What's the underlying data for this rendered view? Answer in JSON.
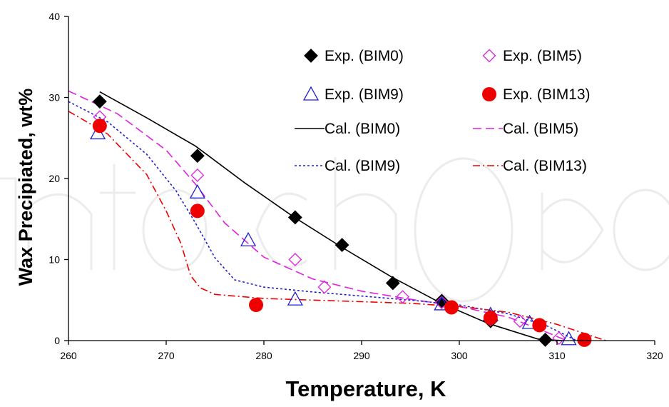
{
  "chart_data": {
    "type": "scatter",
    "title": "",
    "xlabel": "Temperature, K",
    "ylabel": "Wax Precipiated, wt%",
    "xlim": [
      260,
      320
    ],
    "ylim": [
      0,
      40
    ],
    "xticks": [
      260,
      270,
      280,
      290,
      300,
      310,
      320
    ],
    "yticks": [
      0,
      10,
      20,
      30,
      40
    ],
    "grid": false,
    "legend_position": "top-right",
    "series": [
      {
        "name": "Exp. (BIM0)",
        "kind": "marker",
        "marker": "diamond-filled",
        "color": "#000000",
        "x": [
          263.2,
          273.2,
          283.2,
          288.0,
          293.2,
          298.2,
          303.2,
          308.8
        ],
        "y": [
          29.5,
          22.8,
          15.2,
          11.8,
          7.1,
          4.9,
          2.4,
          0.1
        ]
      },
      {
        "name": "Exp. (BIM5)",
        "kind": "marker",
        "marker": "diamond-open",
        "color": "#E020E0",
        "x": [
          263.2,
          273.2,
          283.2,
          286.2,
          294.2,
          298.2,
          303.2,
          306.2,
          310.2
        ],
        "y": [
          27.6,
          20.4,
          10.0,
          6.6,
          5.4,
          4.7,
          2.6,
          2.4,
          0.3
        ]
      },
      {
        "name": "Exp. (BIM9)",
        "kind": "marker",
        "marker": "triangle-open",
        "color": "#2020D0",
        "x": [
          263.0,
          273.2,
          278.4,
          283.2,
          298.2,
          303.2,
          307.2,
          311.2
        ],
        "y": [
          25.6,
          18.3,
          12.4,
          5.1,
          4.5,
          3.2,
          2.2,
          0.2
        ]
      },
      {
        "name": "Exp. (BIM13)",
        "kind": "marker",
        "marker": "circle-filled",
        "color": "#EE0000",
        "x": [
          263.2,
          273.2,
          279.2,
          299.2,
          303.2,
          308.2,
          312.8
        ],
        "y": [
          26.5,
          16.0,
          4.4,
          4.1,
          2.8,
          1.9,
          0.1
        ]
      },
      {
        "name": "Cal. (BIM0)",
        "kind": "line",
        "dash": "solid",
        "color": "#000000",
        "x": [
          263.2,
          268,
          273,
          278,
          283,
          288,
          293,
          298,
          303,
          308,
          310.5
        ],
        "y": [
          30.7,
          27.5,
          24.0,
          19.5,
          15.3,
          11.5,
          7.9,
          4.7,
          2.1,
          0.2,
          0.0
        ]
      },
      {
        "name": "Cal. (BIM5)",
        "kind": "line",
        "dash": "dashed",
        "color": "#E020E0",
        "x": [
          260,
          265,
          270,
          273,
          276,
          280,
          285,
          290,
          295,
          300,
          305,
          309,
          311
        ],
        "y": [
          30.8,
          28.0,
          23.5,
          19.3,
          14.5,
          10.3,
          7.6,
          6.1,
          5.1,
          4.2,
          2.9,
          1.0,
          0.0
        ]
      },
      {
        "name": "Cal. (BIM9)",
        "kind": "line",
        "dash": "dotted",
        "color": "#2020D0",
        "x": [
          260,
          264,
          268,
          271,
          273,
          275,
          277,
          280,
          285,
          290,
          295,
          300,
          305,
          309,
          312
        ],
        "y": [
          29.5,
          27.0,
          23.0,
          18.5,
          14.5,
          10.2,
          7.5,
          6.6,
          6.0,
          5.5,
          5.0,
          4.4,
          3.3,
          1.8,
          0.0
        ]
      },
      {
        "name": "Cal. (BIM13)",
        "kind": "line",
        "dash": "dashdot",
        "color": "#EE0000",
        "x": [
          260,
          264,
          268,
          270,
          271.5,
          272.5,
          273.5,
          275,
          280,
          285,
          290,
          295,
          300,
          305,
          310,
          315
        ],
        "y": [
          28.3,
          25.5,
          20.5,
          16.0,
          12.0,
          8.0,
          6.5,
          5.7,
          5.2,
          5.0,
          4.8,
          4.6,
          4.2,
          3.5,
          2.0,
          0.0
        ]
      }
    ]
  }
}
